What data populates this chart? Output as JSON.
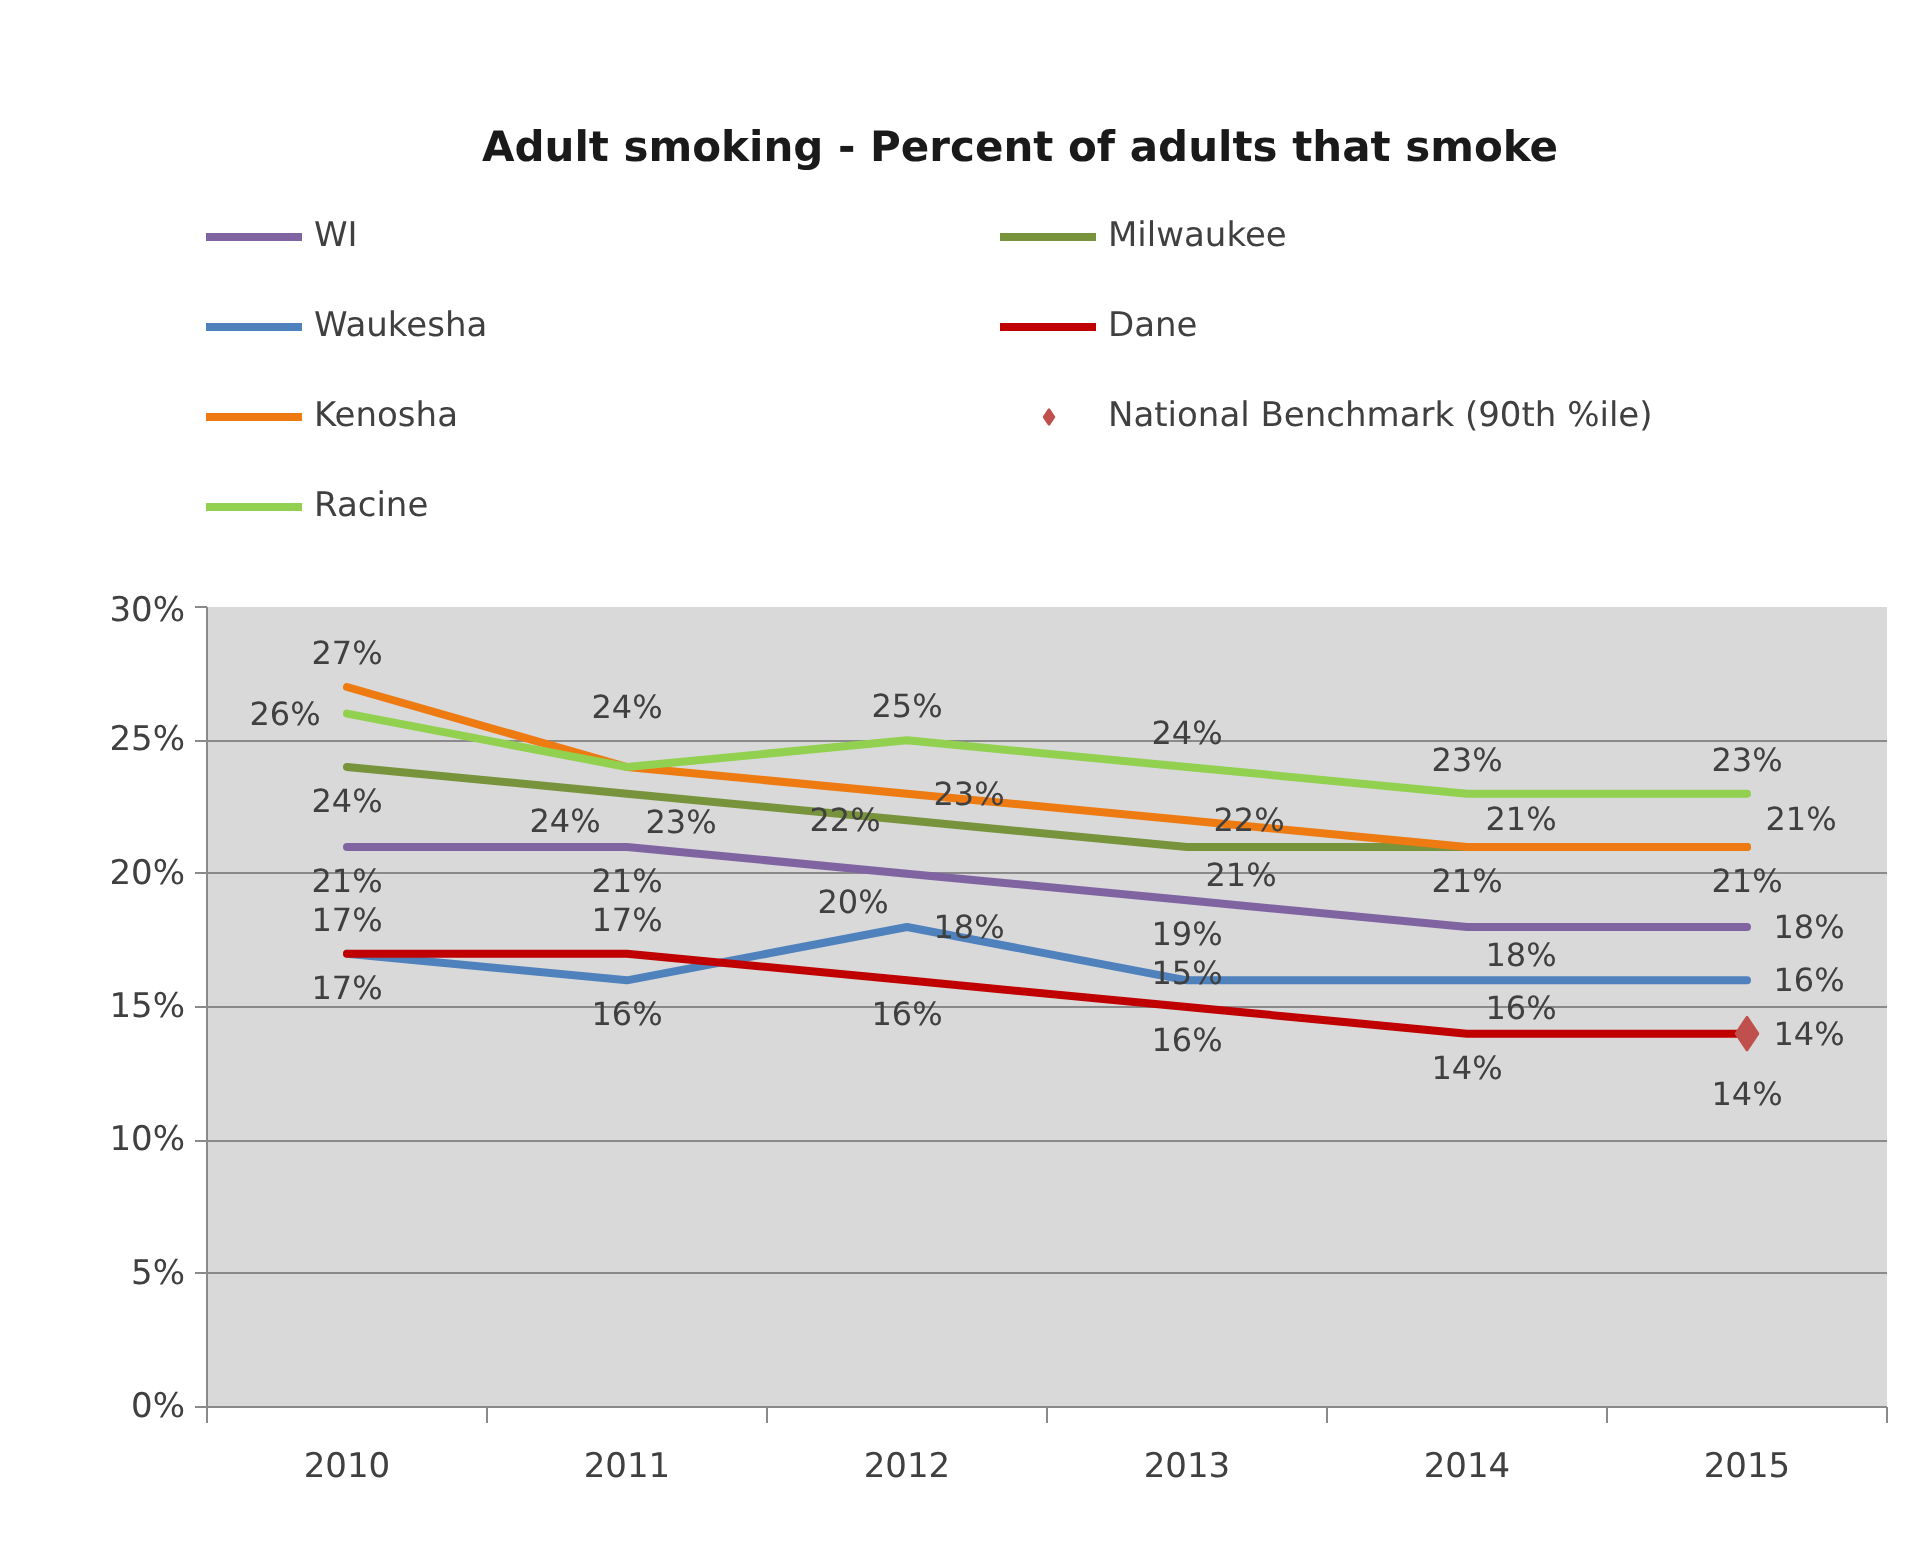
{
  "chart_data": {
    "type": "line",
    "title": "Adult smoking - Percent of adults that smoke",
    "categories": [
      "2010",
      "2011",
      "2012",
      "2013",
      "2014",
      "2015"
    ],
    "series": [
      {
        "name": "WI",
        "color": "#8064a2",
        "values": [
          21,
          21,
          20,
          19,
          18,
          18
        ],
        "value_labels": [
          "21%",
          "21%",
          "20%",
          "19%",
          "18%",
          "18%"
        ]
      },
      {
        "name": "Milwaukee",
        "color": "#77933c",
        "values": [
          24,
          23,
          22,
          21,
          21,
          21
        ],
        "value_labels": [
          "24%",
          "23%",
          "22%",
          "21%",
          "21%",
          "21%"
        ]
      },
      {
        "name": "Waukesha",
        "color": "#4f81bd",
        "values": [
          17,
          16,
          18,
          16,
          16,
          16
        ],
        "value_labels": [
          "17%",
          "16%",
          "18%",
          "16%",
          "16%",
          "16%"
        ]
      },
      {
        "name": "Dane",
        "color": "#c00000",
        "values": [
          17,
          17,
          16,
          15,
          14,
          14
        ],
        "value_labels": [
          "17%",
          "17%",
          "16%",
          "15%",
          "14%",
          "14%"
        ]
      },
      {
        "name": "Kenosha",
        "color": "#ee7a12",
        "values": [
          27,
          24,
          23,
          22,
          21,
          21
        ],
        "value_labels": [
          "27%",
          "24%",
          "23%",
          "22%",
          "21%",
          "21%"
        ]
      },
      {
        "name": "National Benchmark (90th %ile)",
        "type": "scatter",
        "marker": "diamond",
        "color": "#c0504d",
        "values": [
          null,
          null,
          null,
          null,
          null,
          14
        ],
        "value_labels": [
          null,
          null,
          null,
          null,
          null,
          "14%"
        ]
      },
      {
        "name": "Racine",
        "color": "#92d050",
        "values": [
          26,
          24,
          25,
          24,
          23,
          23
        ],
        "value_labels": [
          "26%",
          "24%",
          "25%",
          "24%",
          "23%",
          "23%"
        ]
      }
    ],
    "ylim": [
      0,
      30
    ],
    "yticks": [
      {
        "value": 0,
        "label": "0%"
      },
      {
        "value": 5,
        "label": "5%"
      },
      {
        "value": 10,
        "label": "10%"
      },
      {
        "value": 15,
        "label": "15%"
      },
      {
        "value": 20,
        "label": "20%"
      },
      {
        "value": 25,
        "label": "25%"
      },
      {
        "value": 30,
        "label": "30%"
      }
    ],
    "grid": "y",
    "legend": "top",
    "marker": "none",
    "line_style": "solid"
  }
}
